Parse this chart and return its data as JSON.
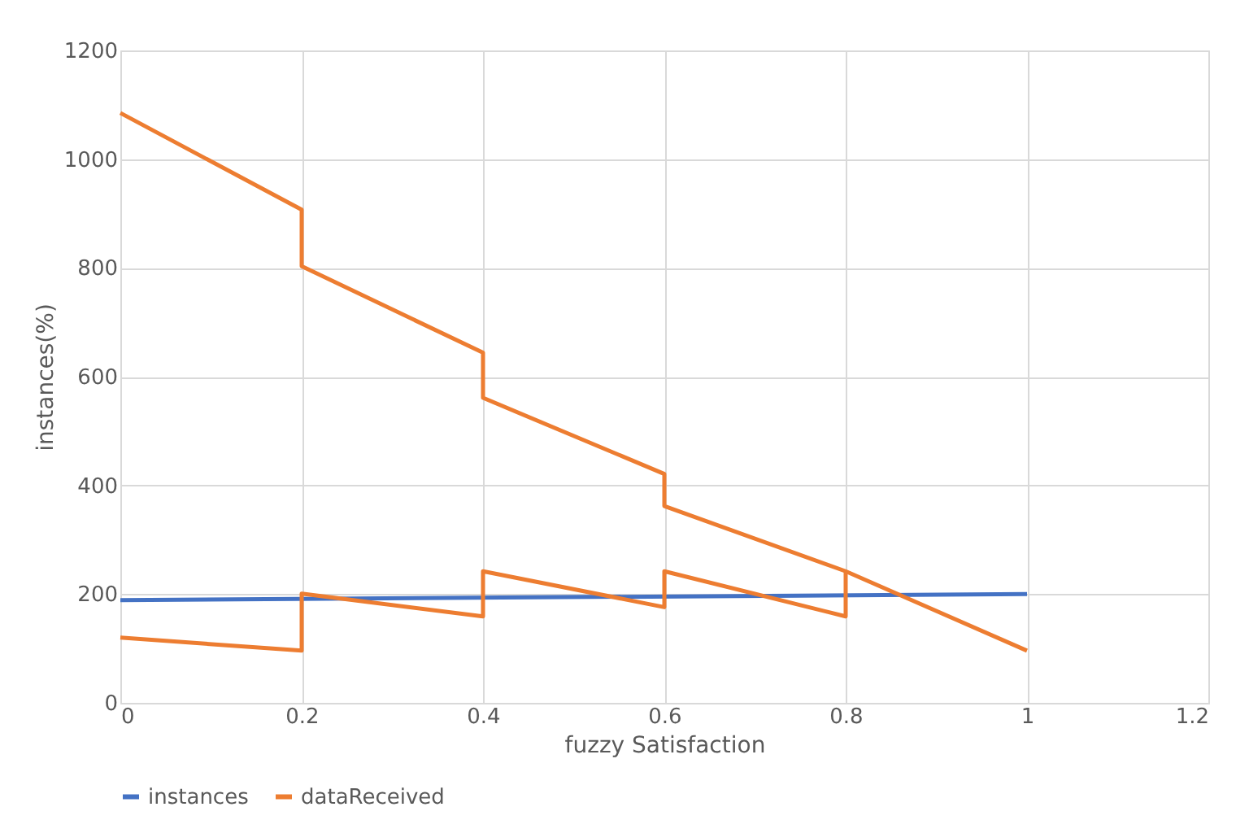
{
  "chart_data": {
    "type": "line",
    "xlabel": "fuzzy Satisfaction",
    "ylabel": "instances(%)",
    "xlim": [
      0,
      1.2
    ],
    "xticks": [
      0,
      0.2,
      0.4,
      0.6,
      0.8,
      1,
      1.2
    ],
    "ylim": [
      0,
      1200
    ],
    "yticks": [
      0,
      200,
      400,
      600,
      800,
      1000,
      1200
    ],
    "grid": true,
    "legend": "bottom",
    "marker": "none",
    "line_style": "solid",
    "series": [
      {
        "name": "instances",
        "color": "#4472c4",
        "x": [
          0,
          1
        ],
        "values": [
          189,
          200
        ]
      },
      {
        "name": "dataReceived",
        "color": "#ed7d31",
        "x": [
          0,
          0.2,
          0.2,
          0.4,
          0.4,
          0.6,
          0.6,
          0.8,
          1
        ],
        "values": [
          1085,
          907,
          803,
          644,
          561,
          421,
          362,
          242,
          96
        ]
      },
      {
        "color": "#ed7d31",
        "x": [
          0,
          0.2,
          0.2,
          0.4,
          0.4,
          0.6,
          0.6,
          0.8,
          0.8
        ],
        "values": [
          120,
          96,
          201,
          159,
          242,
          176,
          242,
          159,
          242
        ]
      }
    ]
  }
}
